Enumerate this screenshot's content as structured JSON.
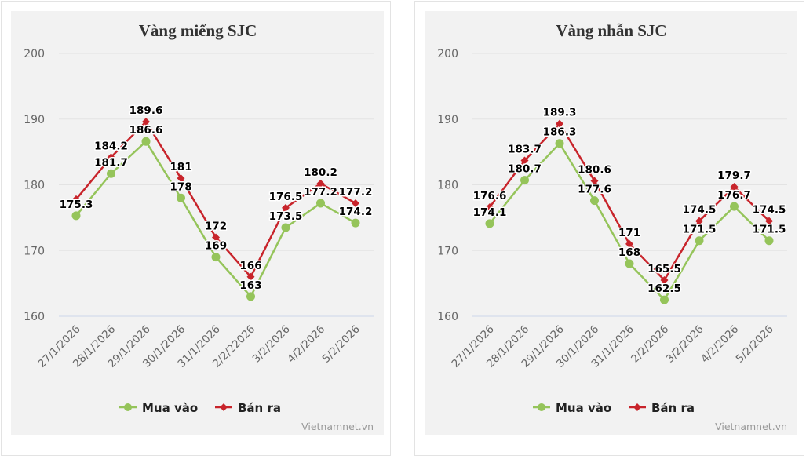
{
  "chart_data": [
    {
      "type": "line",
      "title": "Vàng miếng SJC",
      "categories": [
        "27/1/2026",
        "28/1/2026",
        "29/1/2026",
        "30/1/2026",
        "31/1/2026",
        "2/2/22026",
        "3/2/2026",
        "4/2/2026",
        "5/2/2026"
      ],
      "series": [
        {
          "name": "Mua vào",
          "color": "#95c45a",
          "values": [
            175.3,
            181.7,
            186.6,
            178,
            169,
            163,
            173.5,
            177.2,
            174.2
          ],
          "labels": [
            "175.3",
            "181.7",
            "186.6",
            "178",
            "169",
            "163",
            "173.5",
            "177.2",
            "174.2"
          ]
        },
        {
          "name": "Bán ra",
          "color": "#c8242b",
          "values": [
            177.8,
            184.2,
            189.6,
            181,
            172,
            166,
            176.5,
            180.2,
            177.2
          ],
          "labels": [
            null,
            "184.2",
            "189.6",
            "181",
            "172",
            "166",
            "176.5",
            "180.2",
            "177.2"
          ]
        }
      ],
      "yticks": [
        "160",
        "170",
        "180",
        "190",
        "200"
      ],
      "ylim": [
        160,
        200
      ],
      "grid": true,
      "legend": "bottom-center",
      "credit": "Vietnamnet.vn"
    },
    {
      "type": "line",
      "title": "Vàng nhẫn SJC",
      "categories": [
        "27/1/2026",
        "28/1/2026",
        "29/1/2026",
        "30/1/2026",
        "31/1/2026",
        "2/2/2026",
        "3/2/2026",
        "4/2/2026",
        "5/2/2026"
      ],
      "series": [
        {
          "name": "Mua vào",
          "color": "#95c45a",
          "values": [
            174.1,
            180.7,
            186.3,
            177.6,
            168,
            162.5,
            171.5,
            176.7,
            171.5
          ],
          "labels": [
            "174.1",
            "180.7",
            "186.3",
            "177.6",
            "168",
            "162.5",
            "171.5",
            "176.7",
            "171.5"
          ]
        },
        {
          "name": "Bán ra",
          "color": "#c8242b",
          "values": [
            176.6,
            183.7,
            189.3,
            180.6,
            171,
            165.5,
            174.5,
            179.7,
            174.5
          ],
          "labels": [
            "176.6",
            "183.7",
            "189.3",
            "180.6",
            "171",
            "165.5",
            "174.5",
            "179.7",
            "174.5"
          ]
        }
      ],
      "yticks": [
        "160",
        "170",
        "180",
        "190",
        "200"
      ],
      "ylim": [
        160,
        200
      ],
      "grid": true,
      "legend": "bottom-center",
      "credit": "Vietnamnet.vn"
    }
  ]
}
